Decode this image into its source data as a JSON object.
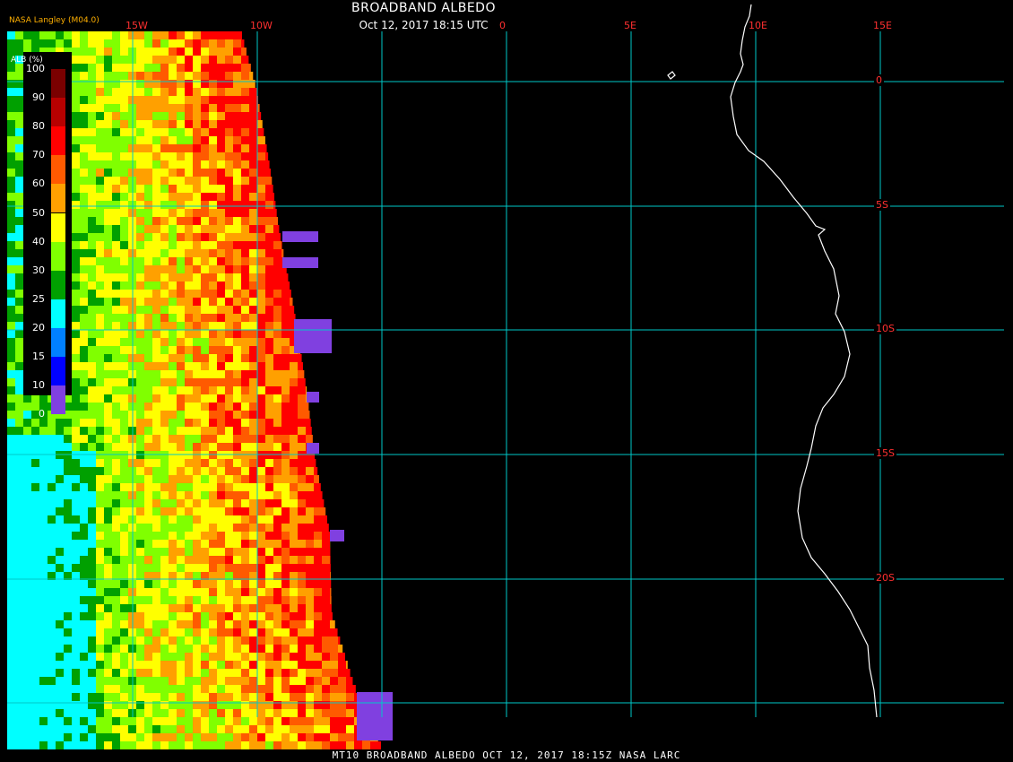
{
  "title": "BROADBAND ALBEDO",
  "subtitle": "Oct 12, 2017 18:15 UTC",
  "producer": "NASA Langley (M04.0)",
  "footer": "MT10  BROADBAND ALBEDO   OCT 12, 2017 18:15Z   NASA LARC",
  "legend": {
    "title": "ALB (%)",
    "ticks": [
      "100",
      "90",
      "80",
      "70",
      "60",
      "50",
      "40",
      "30",
      "25",
      "20",
      "15",
      "10",
      "0"
    ],
    "colors": [
      "#7a0000",
      "#b80000",
      "#ff0000",
      "#ff5a00",
      "#ffa000",
      "#ffff00",
      "#80ff00",
      "#00a000",
      "#00ffff",
      "#0080ff",
      "#0000ff",
      "#8040e0"
    ]
  },
  "longitudes": [
    "15W",
    "10W",
    "0",
    "5E",
    "10E",
    "15E"
  ],
  "latitudes": [
    "0",
    "5S",
    "10S",
    "15S",
    "20S"
  ],
  "colors": {
    "grid": "#00c8c8",
    "coast": "#ffffff",
    "label": "#ff3030",
    "background": "#000000"
  }
}
